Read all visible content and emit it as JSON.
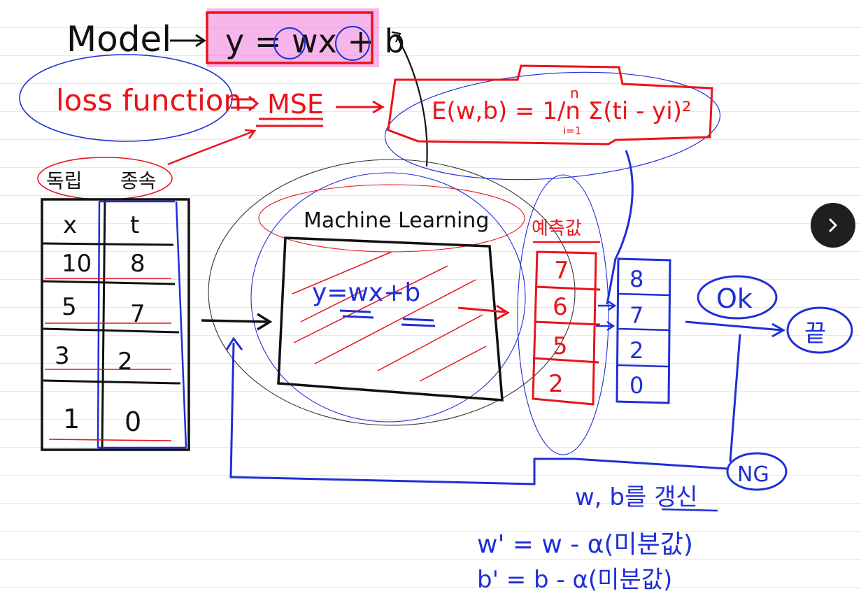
{
  "colors": {
    "ink_black": "#111111",
    "ink_red": "#e8141b",
    "ink_blue": "#1f2fd6",
    "highlight_pink": "#f07ad8"
  },
  "model": {
    "label": "Model",
    "equation": "y = wx + b"
  },
  "loss": {
    "label": "loss function",
    "mse": "MSE",
    "formula": "E(w,b) = 1/n Σ(ti - yi)²",
    "sum_top": "n",
    "sum_bottom": "i=1"
  },
  "table": {
    "headers": [
      "독립",
      "종속"
    ],
    "columns": [
      "x",
      "t"
    ],
    "rows": [
      [
        "10",
        "8"
      ],
      [
        "5",
        "7"
      ],
      [
        "3",
        "2"
      ],
      [
        "1",
        "0"
      ]
    ]
  },
  "ml": {
    "title": "Machine Learning",
    "equation": "y=wx+b"
  },
  "prediction": {
    "label": "예측값",
    "values": [
      "7",
      "6",
      "5",
      "2"
    ]
  },
  "targets": {
    "values": [
      "8",
      "7",
      "2",
      "0"
    ]
  },
  "results": {
    "ok": "Ok",
    "end": "끝",
    "ng": "NG"
  },
  "update": {
    "label": "w, b를 갱신",
    "w_rule": "w' = w - α(미분값)",
    "b_rule": "b' = b - α(미분값)"
  },
  "nav": {
    "next_icon": "chevron-right-icon"
  }
}
